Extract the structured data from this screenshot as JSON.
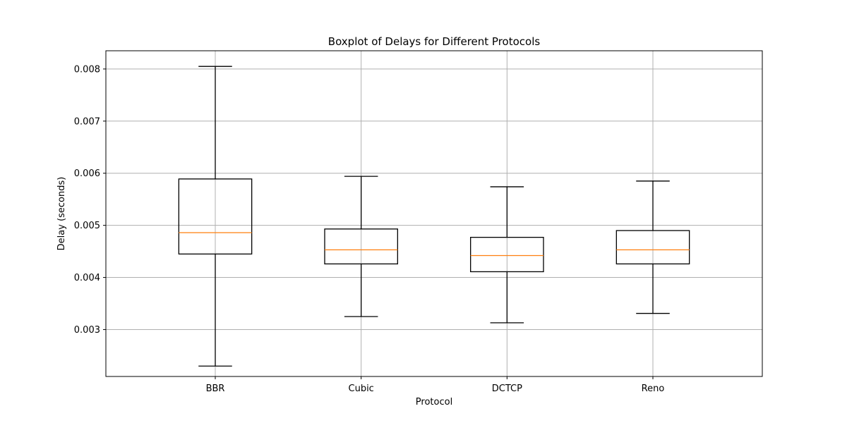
{
  "chart_data": {
    "type": "boxplot",
    "title": "Boxplot of Delays for Different Protocols",
    "xlabel": "Protocol",
    "ylabel": "Delay (seconds)",
    "categories": [
      "BBR",
      "Cubic",
      "DCTCP",
      "Reno"
    ],
    "boxes": [
      {
        "name": "BBR",
        "whisker_low": 0.0023,
        "q1": 0.00445,
        "median": 0.00486,
        "q3": 0.00589,
        "whisker_high": 0.00805
      },
      {
        "name": "Cubic",
        "whisker_low": 0.00325,
        "q1": 0.00426,
        "median": 0.00453,
        "q3": 0.00493,
        "whisker_high": 0.00594
      },
      {
        "name": "DCTCP",
        "whisker_low": 0.00313,
        "q1": 0.00411,
        "median": 0.00442,
        "q3": 0.00477,
        "whisker_high": 0.00574
      },
      {
        "name": "Reno",
        "whisker_low": 0.00331,
        "q1": 0.00426,
        "median": 0.00453,
        "q3": 0.0049,
        "whisker_high": 0.00585
      }
    ],
    "y_ticks": [
      0.003,
      0.004,
      0.005,
      0.006,
      0.007,
      0.008
    ],
    "y_tick_labels": [
      "0.003",
      "0.004",
      "0.005",
      "0.006",
      "0.007",
      "0.008"
    ],
    "ylim": [
      0.0021,
      0.00835
    ],
    "grid": true,
    "colors": {
      "box": "#000000",
      "median": "#ff7f0e",
      "grid": "#b0b0b0",
      "frame": "#000000"
    }
  }
}
